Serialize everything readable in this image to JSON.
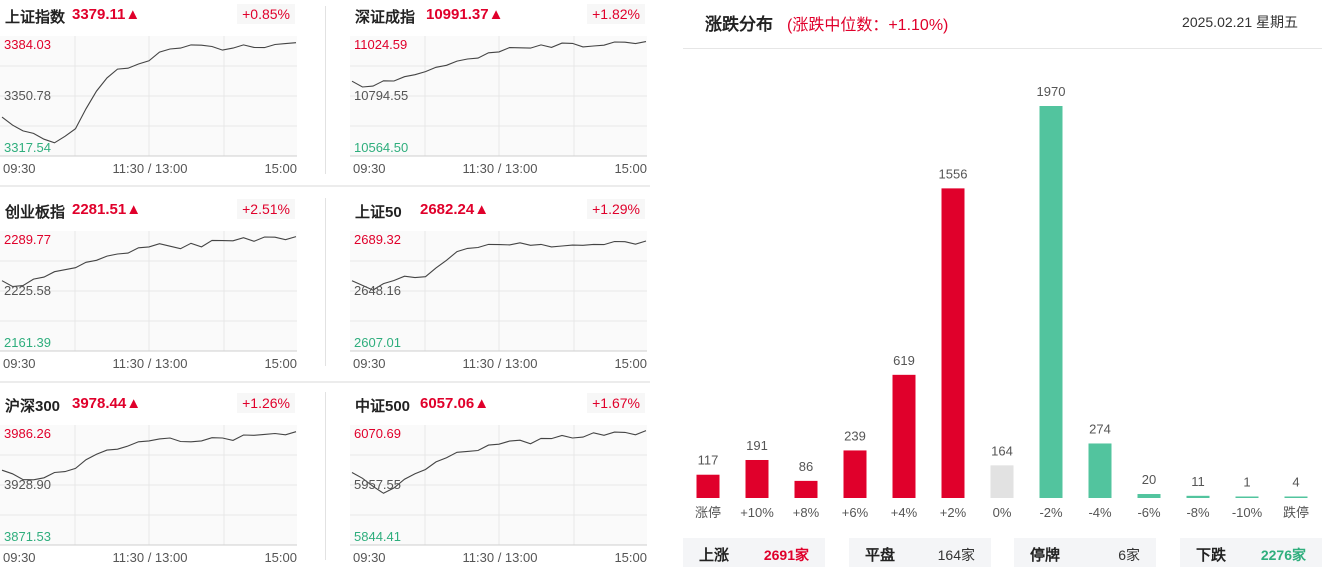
{
  "indices": [
    {
      "name": "上证指数",
      "price": "3379.11▲",
      "change": "+0.85%",
      "y_high": "3384.03",
      "y_mid": "3350.78",
      "y_low": "3317.54",
      "x_start": "09:30",
      "x_mid": "11:30 / 13:00",
      "x_end": "15:00",
      "line": [
        0.7,
        0.76,
        0.8,
        0.84,
        0.88,
        0.93,
        0.86,
        0.78,
        0.62,
        0.45,
        0.35,
        0.26,
        0.24,
        0.22,
        0.18,
        0.12,
        0.08,
        0.06,
        0.05,
        0.04,
        0.07,
        0.09,
        0.06,
        0.05,
        0.06,
        0.08,
        0.04,
        0.02,
        0.03
      ]
    },
    {
      "name": "深证成指",
      "price": "10991.37▲",
      "change": "+1.82%",
      "y_high": "11024.59",
      "y_mid": "10794.55",
      "y_low": "10564.50",
      "x_start": "09:30",
      "x_mid": "11:30 / 13:00",
      "x_end": "15:00",
      "line": [
        0.38,
        0.42,
        0.4,
        0.37,
        0.36,
        0.34,
        0.31,
        0.27,
        0.25,
        0.22,
        0.2,
        0.17,
        0.15,
        0.12,
        0.1,
        0.08,
        0.07,
        0.06,
        0.05,
        0.06,
        0.04,
        0.03,
        0.05,
        0.06,
        0.04,
        0.03,
        0.02,
        0.02,
        0.02
      ]
    },
    {
      "name": "创业板指",
      "price": "2281.51▲",
      "change": "+2.51%",
      "y_high": "2289.77",
      "y_mid": "2225.58",
      "y_low": "2161.39",
      "x_start": "09:30",
      "x_mid": "11:30 / 13:00",
      "x_end": "15:00",
      "line": [
        0.42,
        0.46,
        0.44,
        0.4,
        0.37,
        0.34,
        0.31,
        0.28,
        0.25,
        0.22,
        0.2,
        0.17,
        0.15,
        0.12,
        0.1,
        0.09,
        0.1,
        0.11,
        0.08,
        0.1,
        0.06,
        0.05,
        0.04,
        0.03,
        0.05,
        0.03,
        0.02,
        0.03,
        0.02
      ]
    },
    {
      "name": "上证50",
      "price": "2682.24▲",
      "change": "+1.29%",
      "y_high": "2689.32",
      "y_mid": "2648.16",
      "y_low": "2607.01",
      "x_start": "09:30",
      "x_mid": "11:30 / 13:00",
      "x_end": "15:00",
      "line": [
        0.42,
        0.45,
        0.48,
        0.44,
        0.4,
        0.38,
        0.38,
        0.36,
        0.3,
        0.22,
        0.16,
        0.12,
        0.1,
        0.09,
        0.08,
        0.1,
        0.07,
        0.08,
        0.09,
        0.1,
        0.11,
        0.09,
        0.08,
        0.09,
        0.08,
        0.07,
        0.06,
        0.07,
        0.06
      ]
    },
    {
      "name": "沪深300",
      "price": "3978.44▲",
      "change": "+1.26%",
      "y_high": "3986.26",
      "y_mid": "3928.90",
      "y_low": "3871.53",
      "x_start": "09:30",
      "x_mid": "11:30 / 13:00",
      "x_end": "15:00",
      "line": [
        0.38,
        0.4,
        0.44,
        0.46,
        0.43,
        0.4,
        0.38,
        0.34,
        0.28,
        0.22,
        0.2,
        0.18,
        0.14,
        0.12,
        0.1,
        0.1,
        0.08,
        0.1,
        0.12,
        0.1,
        0.09,
        0.08,
        0.09,
        0.06,
        0.05,
        0.06,
        0.04,
        0.04,
        0.03
      ]
    },
    {
      "name": "中证500",
      "price": "6057.06▲",
      "change": "+1.67%",
      "y_high": "6070.69",
      "y_mid": "5957.55",
      "y_low": "5844.41",
      "x_start": "09:30",
      "x_mid": "11:30 / 13:00",
      "x_end": "15:00",
      "line": [
        0.4,
        0.44,
        0.5,
        0.58,
        0.52,
        0.46,
        0.4,
        0.35,
        0.3,
        0.25,
        0.22,
        0.2,
        0.18,
        0.15,
        0.13,
        0.12,
        0.1,
        0.12,
        0.09,
        0.08,
        0.07,
        0.08,
        0.06,
        0.04,
        0.05,
        0.04,
        0.03,
        0.04,
        0.02
      ]
    }
  ],
  "distribution": {
    "title": "涨跌分布",
    "subtitle": "(涨跌中位数：+1.10%)",
    "date": "2025.02.21 星期五",
    "chart_data": {
      "type": "bar",
      "categories": [
        "涨停",
        "+10%",
        "+8%",
        "+6%",
        "+4%",
        "+2%",
        "0%",
        "-2%",
        "-4%",
        "-6%",
        "-8%",
        "-10%",
        "跌停"
      ],
      "values": [
        117,
        191,
        86,
        239,
        619,
        1556,
        164,
        1970,
        274,
        20,
        11,
        1,
        4
      ],
      "value_labels": [
        "117",
        "191",
        "86",
        "239",
        "619",
        "1556",
        "164",
        "1970",
        "274",
        "20",
        "11",
        "1",
        "4"
      ],
      "colors": [
        "#e0002b",
        "#e0002b",
        "#e0002b",
        "#e0002b",
        "#e0002b",
        "#e0002b",
        "#e2e2e2",
        "#52c49e",
        "#52c49e",
        "#52c49e",
        "#52c49e",
        "#52c49e",
        "#52c49e"
      ],
      "ylim": [
        0,
        1970
      ]
    },
    "stats": [
      {
        "label": "上涨",
        "value": "2691家",
        "color": "#e0002b"
      },
      {
        "label": "平盘",
        "value": "164家",
        "color": "#333333"
      },
      {
        "label": "停牌",
        "value": "6家",
        "color": "#333333"
      },
      {
        "label": "下跌",
        "value": "2276家",
        "color": "#2fae7d"
      }
    ]
  },
  "colors": {
    "up": "#e0002b",
    "down": "#52c49e",
    "flat": "#e2e2e2",
    "low_label": "#2fae7d"
  }
}
